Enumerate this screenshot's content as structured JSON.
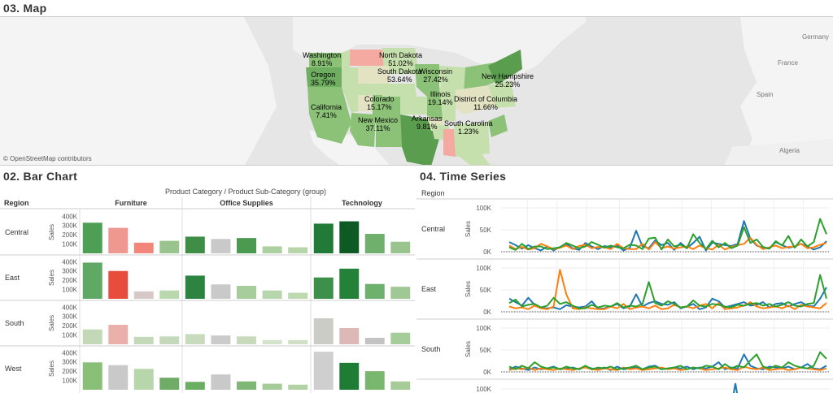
{
  "sections": {
    "map_title": "03.  Map",
    "bar_title": "02.  Bar Chart",
    "ts_title": "04.  Time Series"
  },
  "map": {
    "attribution": "© OpenStreetMap contributors",
    "europe_labels": [
      "Germany",
      "France",
      "Spain",
      "Algeria"
    ],
    "state_labels": [
      {
        "name": "Washington",
        "value": "8.91%"
      },
      {
        "name": "North Dakota",
        "value": "51.02%"
      },
      {
        "name": "Oregon",
        "value": "35.79%"
      },
      {
        "name": "South Dakota",
        "value": "53.64%"
      },
      {
        "name": "Wisconsin",
        "value": "27.42%"
      },
      {
        "name": "New Hampshire",
        "value": "25.23%"
      },
      {
        "name": "Illinois",
        "value": "19.14%"
      },
      {
        "name": "Colorado",
        "value": "15.17%"
      },
      {
        "name": "District of Columbia",
        "value": "11.66%"
      },
      {
        "name": "California",
        "value": "7.41%"
      },
      {
        "name": "New Mexico",
        "value": "37.11%"
      },
      {
        "name": "Arkansas",
        "value": "9.81%"
      },
      {
        "name": "South Carolina",
        "value": "1.23%"
      }
    ],
    "colors": {
      "ocean": "#e6e6e6",
      "land": "#f4f4f4",
      "green_dark": "#5b9d4e",
      "green_mid": "#8cc277",
      "green_light": "#c6e0ad",
      "pink": "#f4a9a1",
      "beige": "#e3e3c3"
    }
  },
  "chart_data": [
    {
      "type": "bar",
      "column_header": "Product Category  /  Product Sub-Category (group)",
      "row_header": "Region",
      "ylabel": "Sales",
      "yticks": [
        "400K",
        "300K",
        "200K",
        "100K"
      ],
      "ylim": [
        0,
        420000
      ],
      "groups": [
        "Furniture",
        "Office Supplies",
        "Technology"
      ],
      "bars_per_group": [
        4,
        5,
        4
      ],
      "rows": [
        {
          "region": "Central",
          "values": [
            330000,
            275000,
            115000,
            135000,
            180000,
            155000,
            165000,
            75000,
            65000,
            320000,
            345000,
            210000,
            125000
          ],
          "colors": [
            "#4e9e55",
            "#ee9890",
            "#f2867a",
            "#99c48e",
            "#3f8e47",
            "#c9c9c9",
            "#4a9a50",
            "#acd0a0",
            "#b6d5a8",
            "#217a36",
            "#0d5a25",
            "#6fb06c",
            "#99c48e"
          ]
        },
        {
          "region": "East",
          "values": [
            390000,
            300000,
            80000,
            90000,
            250000,
            155000,
            140000,
            90000,
            65000,
            230000,
            325000,
            160000,
            130000
          ],
          "colors": [
            "#5fa964",
            "#e84c3c",
            "#d6c8c6",
            "#b9d8ad",
            "#2d8440",
            "#c9c9c9",
            "#a7cd9b",
            "#b7d6ab",
            "#bcd9b0",
            "#3d9049",
            "#248138",
            "#6db16c",
            "#9fc894"
          ]
        },
        {
          "region": "South",
          "values": [
            160000,
            210000,
            80000,
            85000,
            110000,
            95000,
            85000,
            45000,
            45000,
            280000,
            175000,
            70000,
            125000
          ],
          "colors": [
            "#c2d8b6",
            "#ecb0ab",
            "#c4d9b9",
            "#c3d9b9",
            "#c8dcbd",
            "#cbcbcb",
            "#c7dbbc",
            "#d4e3cb",
            "#cfe0c6",
            "#ccccc6",
            "#ddb9b5",
            "#c3c3c3",
            "#a6cc9a"
          ]
        },
        {
          "region": "West",
          "values": [
            295000,
            265000,
            225000,
            130000,
            85000,
            165000,
            90000,
            65000,
            55000,
            410000,
            290000,
            200000,
            90000
          ],
          "colors": [
            "#89bf77",
            "#c9c9c9",
            "#b8d6ab",
            "#6fac66",
            "#6aae62",
            "#c9c9c9",
            "#7fb874",
            "#a5cb98",
            "#b4d3a5",
            "#cfcfcf",
            "#1f7c35",
            "#79b66e",
            "#a6cb98"
          ]
        }
      ]
    },
    {
      "type": "line",
      "row_header": "Region",
      "ylabel": "Sales",
      "yticks": [
        "100K",
        "50K",
        "0K"
      ],
      "ylim": [
        0,
        120000
      ],
      "series_colors": [
        "#1f77b4",
        "#ff7f0e",
        "#2ca02c"
      ],
      "rows": [
        {
          "region": "Central",
          "series": [
            [
              22000,
              15000,
              7000,
              15000,
              8000,
              3000,
              12000,
              3000,
              11000,
              18000,
              8000,
              4000,
              20000,
              12000,
              6000,
              13000,
              10000,
              14000,
              3000,
              9000,
              48000,
              12000,
              8000,
              26000,
              15000,
              20000,
              4000,
              20000,
              8000,
              20000,
              34000,
              3000,
              21000,
              18000,
              15000,
              13000,
              18000,
              70000,
              30000,
              14000,
              9000,
              7000,
              22000,
              15000,
              9000,
              12000,
              18000,
              12000,
              5000,
              10000,
              24000
            ],
            [
              14000,
              6000,
              11000,
              5000,
              8000,
              18000,
              12000,
              6000,
              9000,
              14000,
              6000,
              13000,
              16000,
              8000,
              11000,
              10000,
              6000,
              18000,
              8000,
              6000,
              6000,
              18000,
              5000,
              22000,
              8000,
              12000,
              7000,
              10000,
              12000,
              6000,
              14000,
              8000,
              5000,
              16000,
              5000,
              11000,
              15000,
              18000,
              32000,
              16000,
              6000,
              10000,
              14000,
              8000,
              11000,
              12000,
              18000,
              8000,
              10000,
              16000,
              20000
            ],
            [
              10000,
              4000,
              18000,
              6000,
              12000,
              12000,
              6000,
              8000,
              10000,
              20000,
              14000,
              8000,
              12000,
              22000,
              16000,
              9000,
              14000,
              10000,
              8000,
              16000,
              14000,
              6000,
              30000,
              32000,
              5000,
              28000,
              12000,
              16000,
              8000,
              40000,
              20000,
              6000,
              25000,
              10000,
              20000,
              8000,
              14000,
              56000,
              20000,
              28000,
              11000,
              7000,
              24000,
              14000,
              36000,
              9000,
              28000,
              12000,
              22000,
              75000,
              40000
            ]
          ]
        },
        {
          "region": "East",
          "series": [
            [
              30000,
              22000,
              14000,
              32000,
              16000,
              9000,
              8000,
              10000,
              6000,
              15000,
              12000,
              10000,
              12000,
              24000,
              7000,
              8000,
              12000,
              18000,
              8000,
              12000,
              40000,
              12000,
              20000,
              24000,
              18000,
              16000,
              22000,
              8000,
              12000,
              18000,
              6000,
              10000,
              30000,
              24000,
              10000,
              14000,
              18000,
              22000,
              14000,
              16000,
              22000,
              10000,
              18000,
              20000,
              12000,
              18000,
              22000,
              14000,
              12000,
              30000,
              56000
            ],
            [
              12000,
              8000,
              10000,
              6000,
              14000,
              8000,
              6000,
              12000,
              96000,
              40000,
              8000,
              6000,
              10000,
              8000,
              6000,
              6000,
              12000,
              8000,
              18000,
              6000,
              10000,
              12000,
              8000,
              14000,
              6000,
              8000,
              16000,
              10000,
              12000,
              8000,
              14000,
              18000,
              8000,
              20000,
              6000,
              8000,
              10000,
              14000,
              22000,
              12000,
              8000,
              10000,
              12000,
              8000,
              14000,
              6000,
              16000,
              12000,
              10000,
              8000,
              20000
            ],
            [
              20000,
              28000,
              12000,
              16000,
              18000,
              10000,
              14000,
              32000,
              18000,
              22000,
              14000,
              8000,
              8000,
              16000,
              10000,
              14000,
              12000,
              20000,
              10000,
              14000,
              12000,
              18000,
              68000,
              20000,
              14000,
              24000,
              18000,
              10000,
              12000,
              26000,
              14000,
              12000,
              18000,
              16000,
              12000,
              10000,
              16000,
              14000,
              18000,
              20000,
              14000,
              18000,
              12000,
              16000,
              22000,
              14000,
              12000,
              18000,
              20000,
              84000,
              30000
            ]
          ]
        },
        {
          "region": "South",
          "series": [
            [
              6000,
              12000,
              8000,
              4000,
              10000,
              6000,
              8000,
              12000,
              6000,
              8000,
              10000,
              6000,
              12000,
              8000,
              6000,
              10000,
              4000,
              12000,
              6000,
              8000,
              10000,
              6000,
              12000,
              14000,
              6000,
              8000,
              10000,
              8000,
              12000,
              6000,
              10000,
              8000,
              12000,
              22000,
              6000,
              10000,
              8000,
              40000,
              14000,
              8000,
              6000,
              12000,
              10000,
              8000,
              12000,
              6000,
              10000,
              18000,
              8000,
              6000,
              14000
            ],
            [
              4000,
              8000,
              6000,
              10000,
              4000,
              8000,
              6000,
              4000,
              8000,
              6000,
              4000,
              8000,
              10000,
              6000,
              4000,
              8000,
              6000,
              4000,
              10000,
              6000,
              8000,
              4000,
              6000,
              8000,
              10000,
              6000,
              8000,
              4000,
              6000,
              10000,
              8000,
              4000,
              6000,
              8000,
              10000,
              6000,
              4000,
              12000,
              8000,
              6000,
              10000,
              4000,
              6000,
              8000,
              4000,
              6000,
              10000,
              8000,
              6000,
              4000,
              8000
            ],
            [
              12000,
              6000,
              14000,
              8000,
              22000,
              12000,
              8000,
              10000,
              6000,
              12000,
              8000,
              6000,
              14000,
              6000,
              10000,
              8000,
              12000,
              6000,
              8000,
              10000,
              14000,
              6000,
              10000,
              12000,
              6000,
              8000,
              10000,
              14000,
              6000,
              10000,
              8000,
              14000,
              12000,
              6000,
              18000,
              8000,
              14000,
              10000,
              26000,
              40000,
              12000,
              8000,
              14000,
              10000,
              22000,
              14000,
              10000,
              8000,
              14000,
              45000,
              30000
            ]
          ]
        }
      ],
      "partial_row_tick": "100K"
    }
  ]
}
